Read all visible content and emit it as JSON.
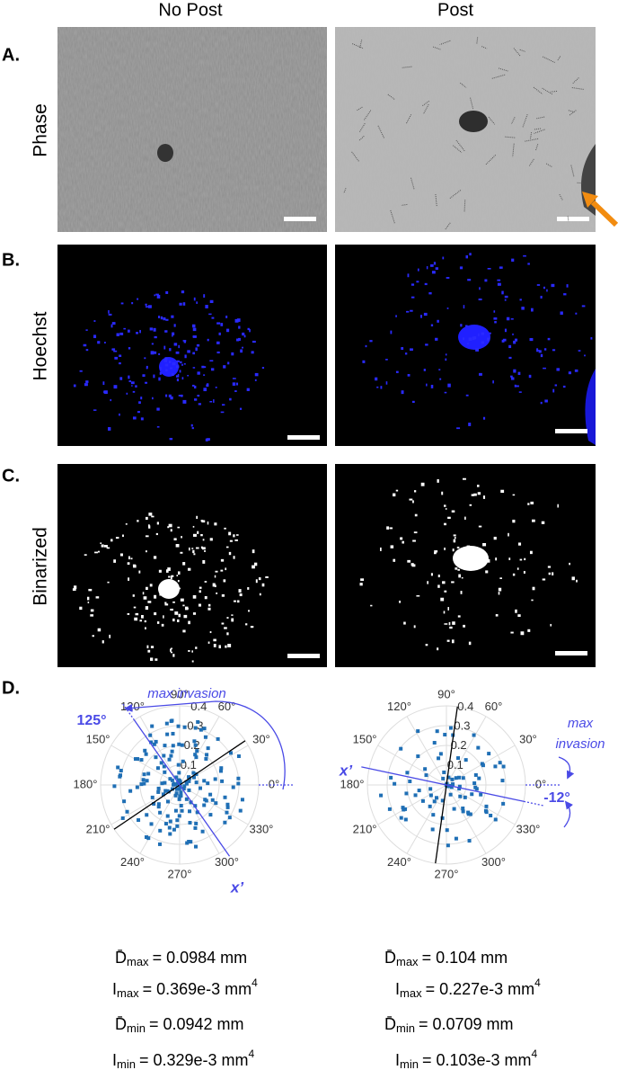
{
  "header": {
    "columns": [
      "No Post",
      "Post"
    ]
  },
  "rows": [
    {
      "letter": "A.",
      "label": "Phase"
    },
    {
      "letter": "B.",
      "label": "Hoechst"
    },
    {
      "letter": "C.",
      "label": "Binarized"
    }
  ],
  "panel_d": {
    "letter": "D.",
    "angle_labels": [
      "0°",
      "30°",
      "60°",
      "90°",
      "120°",
      "150°",
      "180°",
      "210°",
      "240°",
      "270°",
      "300°",
      "330°"
    ],
    "radial_labels": [
      "0.1",
      "0.2",
      "0.3",
      "0.4"
    ],
    "plots": [
      {
        "annotation": "max invasion",
        "angle": "125°",
        "axis": "x’"
      },
      {
        "annotation_lines": [
          "max",
          "invasion"
        ],
        "angle": "-12°",
        "axis": "x’"
      }
    ],
    "stats": [
      [
        {
          "symbol": "D̄",
          "sub": "max",
          "value": "= 0.0984 mm"
        },
        {
          "symbol": "I",
          "sub": "max",
          "value": "= 0.369e-3 mm",
          "sup": "4"
        },
        {
          "symbol": "D̄",
          "sub": "min",
          "value": "= 0.0942 mm"
        },
        {
          "symbol": "I",
          "sub": "min",
          "value": "= 0.329e-3 mm",
          "sup": "4"
        }
      ],
      [
        {
          "symbol": "D̄",
          "sub": "max",
          "value": "= 0.104 mm"
        },
        {
          "symbol": "I",
          "sub": "max",
          "value": "= 0.227e-3 mm",
          "sup": "4"
        },
        {
          "symbol": "D̄",
          "sub": "min",
          "value": "= 0.0709 mm"
        },
        {
          "symbol": "I",
          "sub": "min",
          "value": "= 0.103e-3 mm",
          "sup": "4"
        }
      ]
    ]
  }
}
